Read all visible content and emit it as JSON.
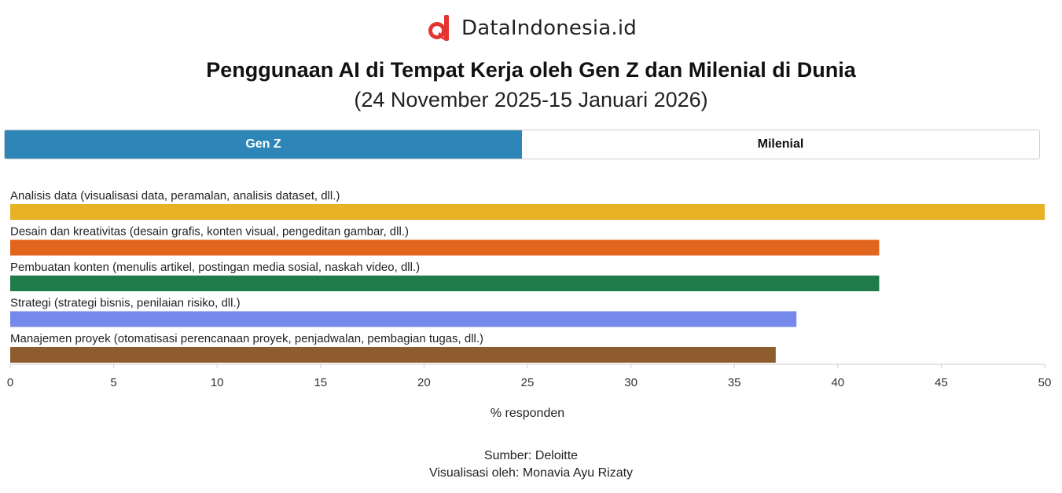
{
  "brand": {
    "name": "DataIndonesia.id",
    "logo_icon": "dataindonesia-logo-icon",
    "logo_color": "#e3342f"
  },
  "title": "Penggunaan AI di Tempat Kerja oleh Gen Z dan Milenial di Dunia",
  "subtitle": "(24 November 2025-15 Januari 2026)",
  "tabs": [
    {
      "label": "Gen Z",
      "active": true
    },
    {
      "label": "Milenial",
      "active": false
    }
  ],
  "chart_data": {
    "type": "bar",
    "orientation": "horizontal",
    "categories": [
      "Analisis data (visualisasi data, peramalan, analisis dataset, dll.)",
      "Desain dan kreativitas (desain grafis, konten visual, pengeditan gambar, dll.)",
      "Pembuatan konten (menulis artikel, postingan media sosial, naskah video, dll.)",
      "Strategi (strategi bisnis, penilaian risiko, dll.)",
      "Manajemen proyek (otomatisasi perencanaan proyek, penjadwalan, pembagian tugas, dll.)"
    ],
    "values": [
      50,
      42,
      42,
      38,
      37
    ],
    "colors": [
      "#e9b124",
      "#e2651e",
      "#1f7a4c",
      "#7489ea",
      "#8f5c2e"
    ],
    "xlabel": "% responden",
    "xlim": [
      0,
      50
    ],
    "xticks": [
      0,
      5,
      10,
      15,
      20,
      25,
      30,
      35,
      40,
      45,
      50
    ],
    "grid": false,
    "legend": "none"
  },
  "footer": {
    "source": "Sumber: Deloitte",
    "credit": "Visualisasi oleh: Monavia Ayu Rizaty"
  }
}
